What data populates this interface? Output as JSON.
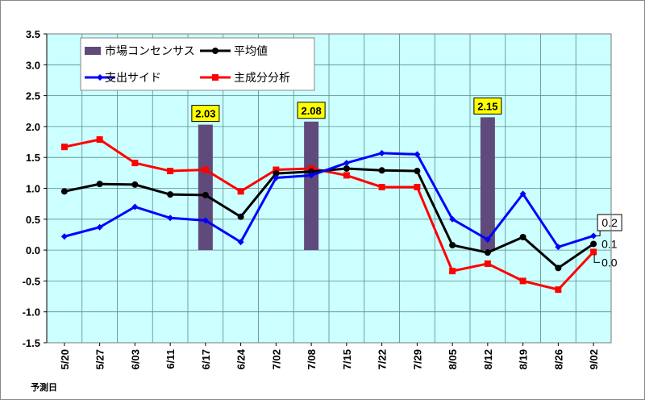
{
  "chart_data": {
    "type": "line",
    "title": "",
    "xlabel": "予測日",
    "ylabel": "",
    "ylim": [
      -1.5,
      3.5
    ],
    "yticks": [
      "3.5",
      "3.0",
      "2.5",
      "2.0",
      "1.5",
      "1.0",
      "0.5",
      "0.0",
      "-0.5",
      "-1.0",
      "-1.5"
    ],
    "grid": true,
    "legend_placement": "top-left",
    "categories": [
      "5/20",
      "5/27",
      "6/03",
      "6/11",
      "6/17",
      "6/24",
      "7/02",
      "7/08",
      "7/15",
      "7/22",
      "7/29",
      "8/05",
      "8/12",
      "8/19",
      "8/26",
      "9/02"
    ],
    "bars": {
      "name": "市場コンセンサス",
      "color": "#604a7b",
      "values": [
        null,
        null,
        null,
        null,
        2.03,
        null,
        null,
        2.08,
        null,
        null,
        null,
        null,
        2.15,
        null,
        null,
        null
      ],
      "labels": [
        "2.03",
        "2.08",
        "2.15"
      ]
    },
    "series": [
      {
        "name": "平均値",
        "color": "#000000",
        "marker": "circle",
        "values": [
          0.95,
          1.07,
          1.06,
          0.9,
          0.89,
          0.54,
          1.24,
          1.27,
          1.32,
          1.29,
          1.28,
          0.08,
          -0.04,
          0.21,
          -0.29,
          0.1
        ],
        "end_label": "0.1"
      },
      {
        "name": "支出サイド",
        "color": "#0000ff",
        "marker": "diamond",
        "values": [
          0.22,
          0.37,
          0.7,
          0.52,
          0.48,
          0.13,
          1.17,
          1.21,
          1.41,
          1.57,
          1.55,
          0.5,
          0.17,
          0.91,
          0.05,
          0.23
        ],
        "end_label": "0.2"
      },
      {
        "name": "主成分分析",
        "color": "#ff0000",
        "marker": "square",
        "values": [
          1.67,
          1.79,
          1.41,
          1.28,
          1.3,
          0.95,
          1.3,
          1.32,
          1.21,
          1.02,
          1.02,
          -0.34,
          -0.22,
          -0.5,
          -0.64,
          -0.03
        ],
        "end_label": "0.0"
      }
    ],
    "plot_bg": "#ccffff",
    "label_bg": "#ffff00"
  }
}
